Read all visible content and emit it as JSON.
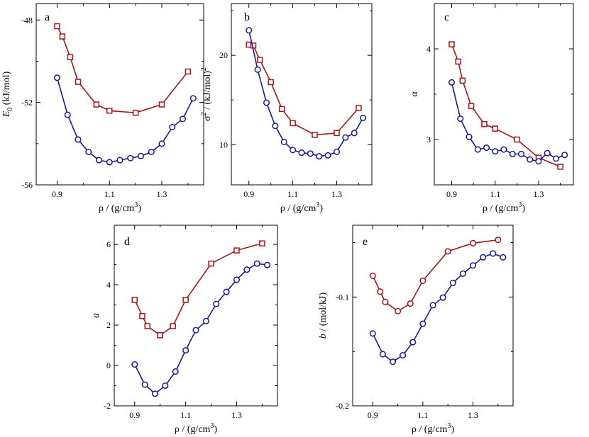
{
  "figure": {
    "xlabel_prefix": "ρ / (g/cm",
    "xlabel_sup": "3",
    "xlabel_suffix": ")"
  },
  "series_styles": {
    "red": {
      "color": "#A01818",
      "marker": "square"
    },
    "blue": {
      "color": "#1A1A8C",
      "marker": "circle"
    }
  },
  "chart_data": [
    {
      "id": "a",
      "type": "line",
      "panel_label": "a",
      "ylabel_parts": [
        {
          "t": "E",
          "italic": true
        },
        {
          "t": "0",
          "sub": true
        },
        {
          "t": " (kJ/mol)"
        }
      ],
      "xlim": [
        0.82,
        1.46
      ],
      "ylim": [
        -56,
        -47.2
      ],
      "xticks": [
        0.9,
        1.1,
        1.3
      ],
      "xticklabels": [
        "0.9",
        "1.1",
        "1.3"
      ],
      "yticks": [
        -56,
        -52,
        -48
      ],
      "yticklabels": [
        "-56",
        "-52",
        "-48"
      ],
      "series": [
        {
          "name": "red",
          "style": "red",
          "x": [
            0.9,
            0.92,
            0.95,
            0.98,
            1.05,
            1.1,
            1.2,
            1.3,
            1.4
          ],
          "y": [
            -48.3,
            -48.8,
            -49.8,
            -51.0,
            -52.1,
            -52.4,
            -52.5,
            -52.1,
            -50.5
          ]
        },
        {
          "name": "blue",
          "style": "blue",
          "x": [
            0.9,
            0.94,
            0.98,
            1.02,
            1.06,
            1.1,
            1.14,
            1.18,
            1.22,
            1.26,
            1.3,
            1.34,
            1.38,
            1.42
          ],
          "y": [
            -50.8,
            -52.6,
            -53.8,
            -54.4,
            -54.8,
            -54.9,
            -54.8,
            -54.7,
            -54.6,
            -54.4,
            -54.0,
            -53.2,
            -52.8,
            -51.8
          ]
        }
      ]
    },
    {
      "id": "b",
      "type": "line",
      "panel_label": "b",
      "ylabel_parts": [
        {
          "t": "σ"
        },
        {
          "t": "2",
          "sup": true
        },
        {
          "t": " / (kJ/mol)"
        },
        {
          "t": "2",
          "sup": true
        }
      ],
      "xlim": [
        0.82,
        1.46
      ],
      "ylim": [
        5.5,
        25.8
      ],
      "xticks": [
        0.9,
        1.1,
        1.3
      ],
      "xticklabels": [
        "0.9",
        "1.1",
        "1.3"
      ],
      "yticks": [
        10,
        20
      ],
      "yticklabels": [
        "10",
        "20"
      ],
      "series": [
        {
          "name": "red",
          "style": "red",
          "x": [
            0.9,
            0.92,
            0.95,
            1.0,
            1.05,
            1.1,
            1.2,
            1.3,
            1.4
          ],
          "y": [
            21.2,
            21.1,
            19.5,
            17.0,
            14.0,
            12.4,
            11.1,
            11.3,
            14.1
          ]
        },
        {
          "name": "blue",
          "style": "blue",
          "x": [
            0.9,
            0.94,
            0.98,
            1.02,
            1.06,
            1.1,
            1.14,
            1.18,
            1.22,
            1.26,
            1.3,
            1.34,
            1.38,
            1.42
          ],
          "y": [
            22.8,
            18.4,
            14.7,
            12.1,
            10.3,
            9.4,
            9.1,
            9.0,
            8.7,
            8.8,
            9.2,
            10.8,
            11.3,
            13.0
          ]
        }
      ]
    },
    {
      "id": "c",
      "type": "line",
      "panel_label": "c",
      "ylabel_parts": [
        {
          "t": "α"
        }
      ],
      "xlim": [
        0.82,
        1.46
      ],
      "ylim": [
        2.5,
        4.5
      ],
      "xticks": [
        0.9,
        1.1,
        1.3
      ],
      "xticklabels": [
        "0.9",
        "1.1",
        "1.3"
      ],
      "yticks": [
        3,
        4
      ],
      "yticklabels": [
        "3",
        "4"
      ],
      "series": [
        {
          "name": "red",
          "style": "red",
          "x": [
            0.9,
            0.93,
            0.95,
            0.99,
            1.05,
            1.1,
            1.2,
            1.3,
            1.4
          ],
          "y": [
            4.05,
            3.86,
            3.65,
            3.37,
            3.17,
            3.12,
            3.0,
            2.8,
            2.7
          ]
        },
        {
          "name": "blue",
          "style": "blue",
          "x": [
            0.9,
            0.94,
            0.98,
            1.02,
            1.06,
            1.1,
            1.14,
            1.18,
            1.22,
            1.26,
            1.3,
            1.34,
            1.38,
            1.42
          ],
          "y": [
            3.63,
            3.23,
            3.03,
            2.89,
            2.91,
            2.87,
            2.89,
            2.84,
            2.84,
            2.78,
            2.76,
            2.85,
            2.79,
            2.83
          ]
        }
      ]
    },
    {
      "id": "d",
      "type": "line",
      "panel_label": "d",
      "ylabel_parts": [
        {
          "t": "a",
          "italic": true
        }
      ],
      "xlim": [
        0.82,
        1.46
      ],
      "ylim": [
        -2,
        6.95
      ],
      "xticks": [
        0.9,
        1.1,
        1.3
      ],
      "xticklabels": [
        "0.9",
        "1.1",
        "1.3"
      ],
      "yticks": [
        -2,
        0,
        2,
        4,
        6
      ],
      "yticklabels": [
        "-2",
        "0",
        "2",
        "4",
        "6"
      ],
      "series": [
        {
          "name": "red",
          "style": "red",
          "x": [
            0.9,
            0.93,
            0.95,
            1.0,
            1.05,
            1.1,
            1.2,
            1.3,
            1.4
          ],
          "y": [
            3.25,
            2.45,
            1.95,
            1.5,
            1.95,
            3.25,
            5.05,
            5.7,
            6.05
          ]
        },
        {
          "name": "blue",
          "style": "blue",
          "x": [
            0.9,
            0.94,
            0.98,
            1.02,
            1.06,
            1.1,
            1.14,
            1.18,
            1.22,
            1.26,
            1.3,
            1.34,
            1.38,
            1.42
          ],
          "y": [
            0.05,
            -0.95,
            -1.4,
            -1.0,
            -0.3,
            0.75,
            1.75,
            2.2,
            3.05,
            3.65,
            4.25,
            4.75,
            5.05,
            4.98
          ]
        }
      ]
    },
    {
      "id": "e",
      "type": "line",
      "panel_label": "e",
      "ylabel_parts": [
        {
          "t": "b",
          "italic": true
        },
        {
          "t": " / (mol/kJ)"
        }
      ],
      "xlim": [
        0.82,
        1.46
      ],
      "ylim": [
        -0.2,
        -0.034
      ],
      "xticks": [
        0.9,
        1.1,
        1.3
      ],
      "xticklabels": [
        "0.9",
        "1.1",
        "1.3"
      ],
      "yticks": [
        -0.2,
        -0.1
      ],
      "yticklabels": [
        "-0.2",
        "-0.1"
      ],
      "series": [
        {
          "name": "red",
          "style": "red_circle",
          "x": [
            0.9,
            0.93,
            0.95,
            1.0,
            1.05,
            1.1,
            1.2,
            1.3,
            1.4
          ],
          "y": [
            -0.0805,
            -0.095,
            -0.1045,
            -0.113,
            -0.106,
            -0.085,
            -0.058,
            -0.0505,
            -0.0475
          ]
        },
        {
          "name": "blue",
          "style": "blue",
          "x": [
            0.9,
            0.94,
            0.98,
            1.02,
            1.06,
            1.1,
            1.14,
            1.18,
            1.22,
            1.26,
            1.3,
            1.34,
            1.38,
            1.42
          ],
          "y": [
            -0.1335,
            -0.1525,
            -0.1595,
            -0.1535,
            -0.1415,
            -0.1245,
            -0.1075,
            -0.1005,
            -0.087,
            -0.0785,
            -0.071,
            -0.0635,
            -0.06,
            -0.0635
          ]
        }
      ]
    }
  ]
}
